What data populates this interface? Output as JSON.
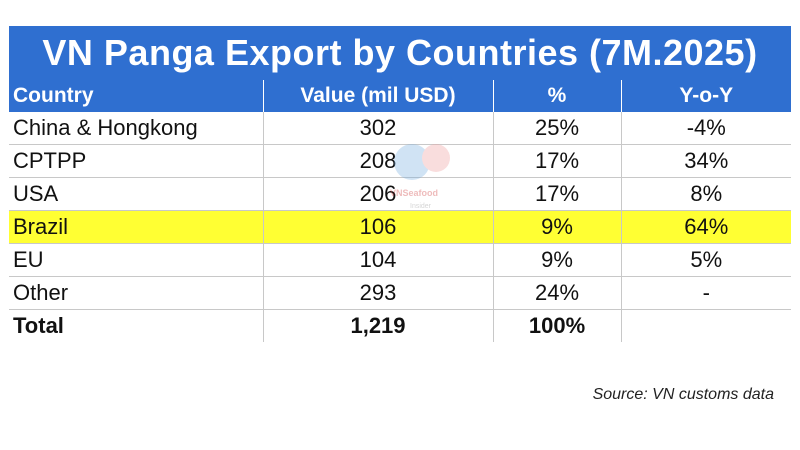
{
  "chart_data": {
    "type": "table",
    "title": "VN Panga Export by Countries (7M.2025)",
    "columns": [
      "Country",
      "Value (mil USD)",
      "%",
      "Y-o-Y"
    ],
    "rows": [
      {
        "country": "China & Hongkong",
        "value": "302",
        "share": "25%",
        "yoy": "-4%",
        "highlight": false
      },
      {
        "country": "CPTPP",
        "value": "208",
        "share": "17%",
        "yoy": "34%",
        "highlight": false
      },
      {
        "country": "USA",
        "value": "206",
        "share": "17%",
        "yoy": "8%",
        "highlight": false
      },
      {
        "country": "Brazil",
        "value": "106",
        "share": "9%",
        "yoy": "64%",
        "highlight": true
      },
      {
        "country": "EU",
        "value": "104",
        "share": "9%",
        "yoy": "5%",
        "highlight": false
      },
      {
        "country": "Other",
        "value": "293",
        "share": "24%",
        "yoy": "-",
        "highlight": false
      }
    ],
    "total": {
      "label": "Total",
      "value": "1,219",
      "share": "100%",
      "yoy": ""
    },
    "highlight_color": "#ffff33",
    "header_color": "#2f6fd0"
  },
  "source": "Source: VN customs data",
  "watermark": {
    "icon": "seafood-logo-icon",
    "text": "VNSeafood",
    "subtext": "Insider"
  }
}
